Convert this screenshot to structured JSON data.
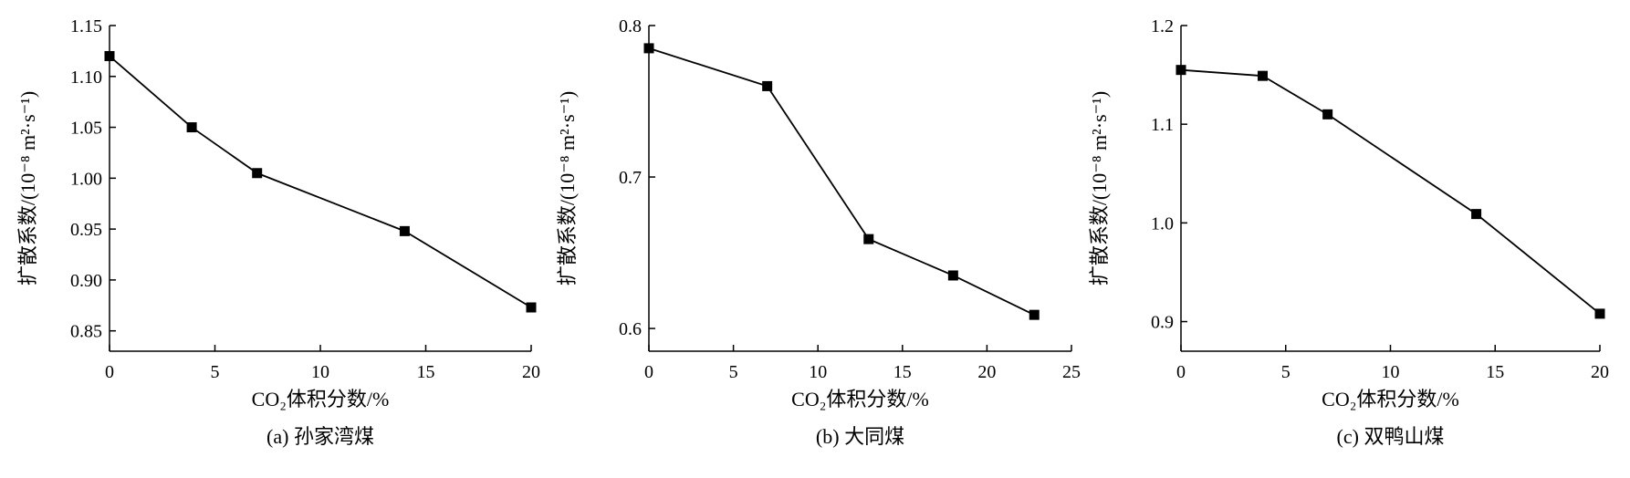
{
  "chart_data": [
    {
      "type": "line",
      "caption": "(a)  孙家湾煤",
      "xlabel": "CO₂体积分数/%",
      "ylabel": "扩散系数/(10⁻⁸ m²·s⁻¹)",
      "xlim": [
        0,
        20
      ],
      "ylim": [
        0.83,
        1.15
      ],
      "xticks": [
        0,
        5,
        10,
        15,
        20
      ],
      "yticks": [
        0.85,
        0.9,
        0.95,
        1.0,
        1.05,
        1.1,
        1.15
      ],
      "ytick_labels": [
        "0.85",
        "0.90",
        "0.95",
        "1.00",
        "1.05",
        "1.10",
        "1.15"
      ],
      "grid": false,
      "marker": "square",
      "series": [
        {
          "x": [
            0,
            3.9,
            7,
            14,
            20
          ],
          "y": [
            1.12,
            1.05,
            1.005,
            0.948,
            0.873
          ]
        }
      ]
    },
    {
      "type": "line",
      "caption": "(b)  大同煤",
      "xlabel": "CO₂体积分数/%",
      "ylabel": "扩散系数/(10⁻⁸ m²·s⁻¹)",
      "xlim": [
        0,
        25
      ],
      "ylim": [
        0.585,
        0.8
      ],
      "xticks": [
        0,
        5,
        10,
        15,
        20,
        25
      ],
      "yticks": [
        0.6,
        0.7,
        0.8
      ],
      "ytick_labels": [
        "0.6",
        "0.7",
        "0.8"
      ],
      "grid": false,
      "marker": "square",
      "series": [
        {
          "x": [
            0,
            7,
            13,
            18,
            22.8
          ],
          "y": [
            0.785,
            0.76,
            0.659,
            0.635,
            0.609
          ]
        }
      ]
    },
    {
      "type": "line",
      "caption": "(c)  双鸭山煤",
      "xlabel": "CO₂体积分数/%",
      "ylabel": "扩散系数/(10⁻⁸ m²·s⁻¹)",
      "xlim": [
        0,
        20
      ],
      "ylim": [
        0.87,
        1.2
      ],
      "xticks": [
        0,
        5,
        10,
        15,
        20
      ],
      "yticks": [
        0.9,
        1.0,
        1.1,
        1.2
      ],
      "ytick_labels": [
        "0.9",
        "1.0",
        "1.1",
        "1.2"
      ],
      "grid": false,
      "marker": "square",
      "series": [
        {
          "x": [
            0,
            3.9,
            7,
            14.1,
            20
          ],
          "y": [
            1.155,
            1.149,
            1.11,
            1.009,
            0.908
          ]
        }
      ]
    }
  ]
}
